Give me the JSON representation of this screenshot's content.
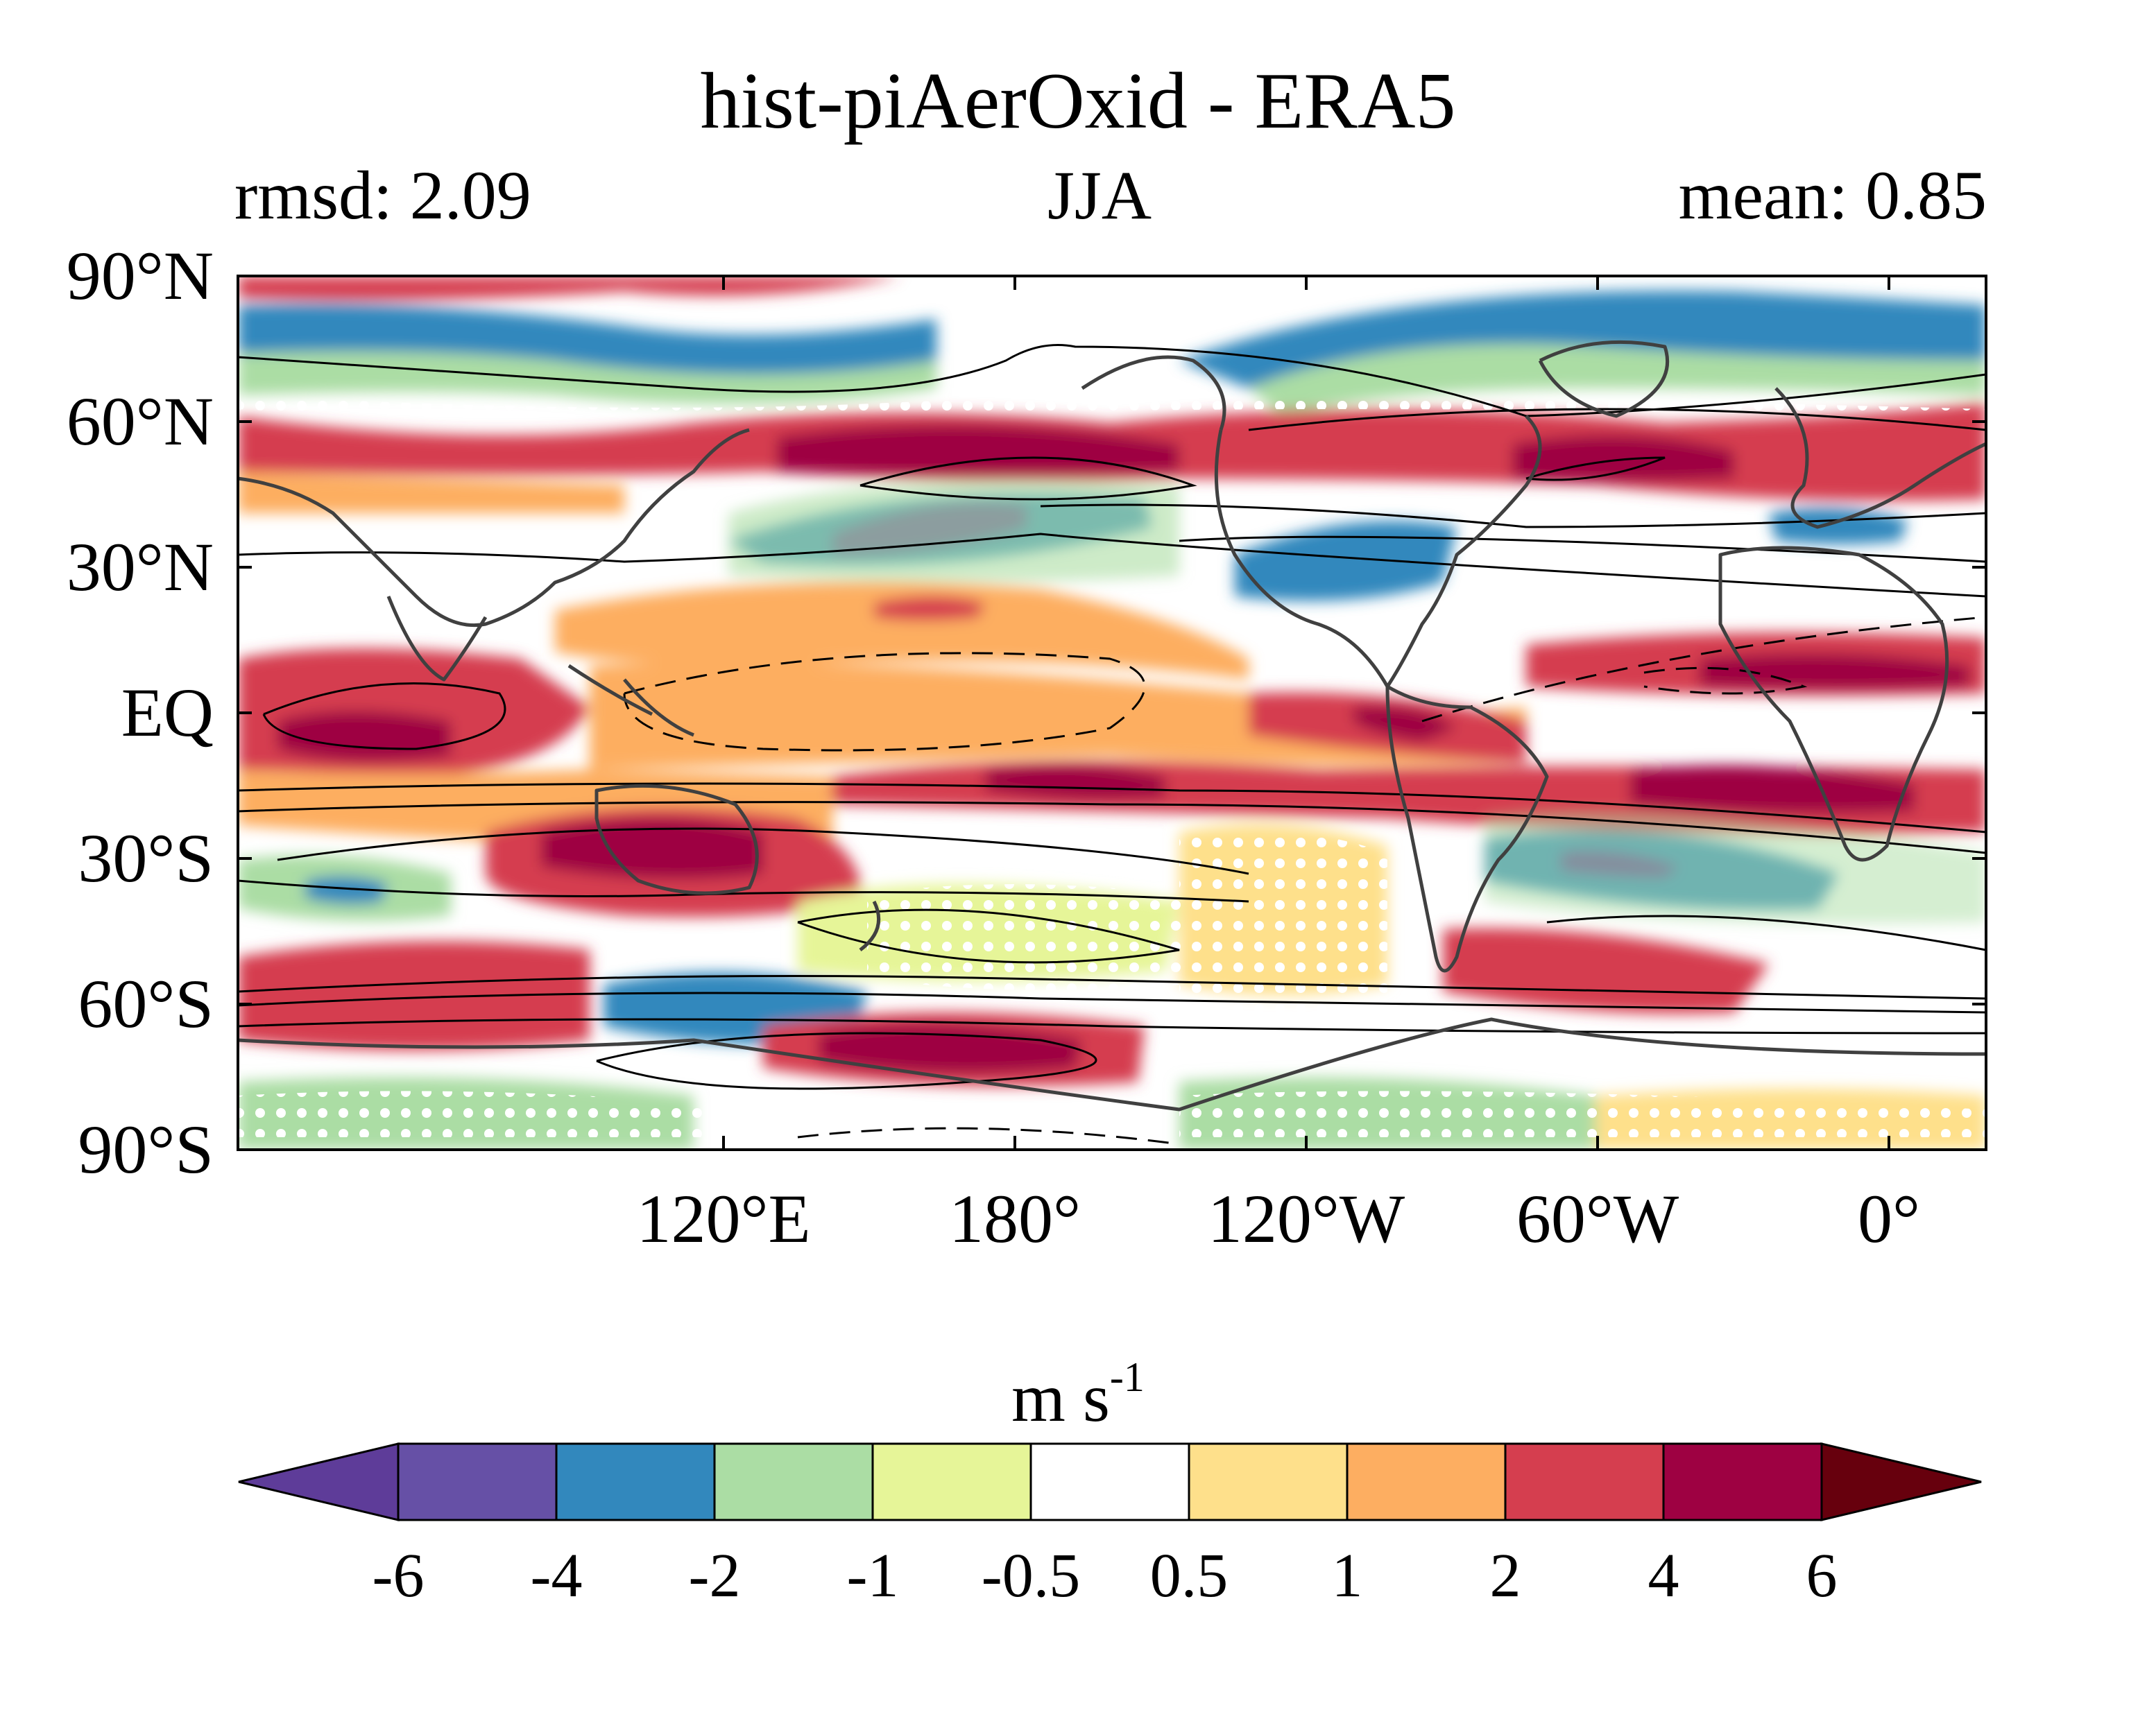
{
  "figure": {
    "title": "hist-piAerOxid - ERA5",
    "left_label": "rmsd: 2.09",
    "center_label": "JJA",
    "right_label": "mean: 0.85"
  },
  "map": {
    "projection": "cylindrical equidistant",
    "lat_range": [
      -90,
      90
    ],
    "lon_range": [
      20,
      380
    ],
    "lat_ticks": [
      {
        "value": 90,
        "label": "90°N"
      },
      {
        "value": 60,
        "label": "60°N"
      },
      {
        "value": 30,
        "label": "30°N"
      },
      {
        "value": 0,
        "label": "EQ"
      },
      {
        "value": -30,
        "label": "30°S"
      },
      {
        "value": -60,
        "label": "60°S"
      },
      {
        "value": -90,
        "label": "90°S"
      }
    ],
    "lon_ticks": [
      {
        "value": 120,
        "label": "120°E"
      },
      {
        "value": 180,
        "label": "180°"
      },
      {
        "value": 240,
        "label": "120°W"
      },
      {
        "value": 300,
        "label": "60°W"
      },
      {
        "value": 360,
        "label": "0°"
      }
    ],
    "field": "filled contour anomaly (model minus reanalysis)",
    "overlay": "black climatology contours, dashed negative; white stippling",
    "coastline_color": "#404040"
  },
  "colorbar": {
    "unit_base": "m s",
    "unit_exp": "-1",
    "levels": [
      "-6",
      "-4",
      "-2",
      "-1",
      "-0.5",
      "0.5",
      "1",
      "2",
      "4",
      "6"
    ],
    "colors": [
      "#5e3c99",
      "#6650a6",
      "#3288bd",
      "#abdda4",
      "#e6f598",
      "#ffffff",
      "#fee08b",
      "#fdae61",
      "#d53e4f",
      "#9e0142",
      "#67000d"
    ],
    "extend": "both"
  }
}
